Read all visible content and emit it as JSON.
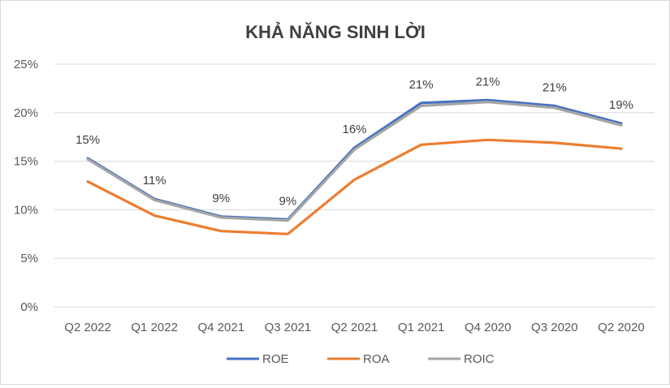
{
  "chart_data": {
    "type": "line",
    "title": "KHẢ NĂNG SINH LỜI",
    "xlabel": "",
    "ylabel": "",
    "categories": [
      "Q2 2022",
      "Q1 2022",
      "Q4 2021",
      "Q3 2021",
      "Q2 2021",
      "Q1 2021",
      "Q4 2020",
      "Q3 2020",
      "Q2 2020"
    ],
    "ylim": [
      0,
      25
    ],
    "yticks": [
      0,
      5,
      10,
      15,
      20,
      25
    ],
    "ytick_labels": [
      "0%",
      "5%",
      "10%",
      "15%",
      "20%",
      "25%"
    ],
    "grid": true,
    "legend_position": "bottom",
    "series": [
      {
        "name": "ROE",
        "color": "#4472C4",
        "values": [
          15.3,
          11.1,
          9.3,
          9.0,
          16.4,
          21.0,
          21.3,
          20.7,
          18.9
        ]
      },
      {
        "name": "ROA",
        "color": "#ED7D31",
        "values": [
          12.9,
          9.4,
          7.8,
          7.5,
          13.1,
          16.7,
          17.2,
          16.9,
          16.3
        ]
      },
      {
        "name": "ROIC",
        "color": "#A5A5A5",
        "values": [
          15.2,
          11.0,
          9.2,
          8.9,
          16.2,
          20.7,
          21.1,
          20.5,
          18.7
        ]
      }
    ],
    "data_labels": {
      "series": "ROE",
      "values": [
        "15%",
        "11%",
        "9%",
        "9%",
        "16%",
        "21%",
        "21%",
        "21%",
        "19%"
      ]
    }
  }
}
